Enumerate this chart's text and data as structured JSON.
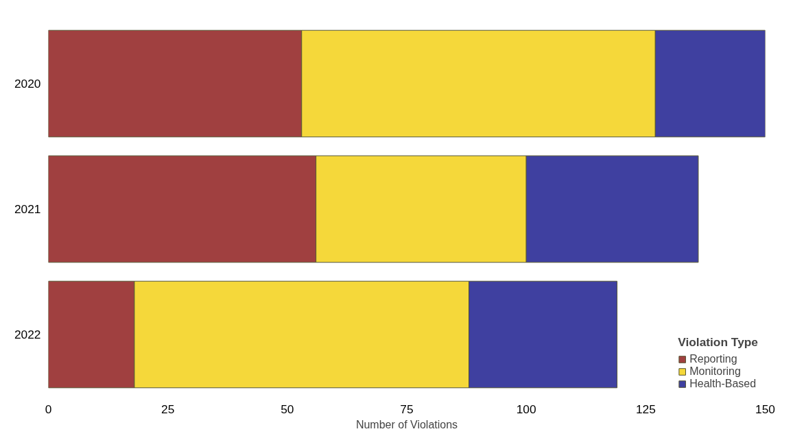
{
  "chart_data": {
    "type": "bar",
    "orientation": "horizontal",
    "stacked": true,
    "categories": [
      "2020",
      "2021",
      "2022"
    ],
    "series": [
      {
        "name": "Reporting",
        "color": "#a04040",
        "values": [
          53,
          56,
          18
        ]
      },
      {
        "name": "Monitoring",
        "color": "#f5d83a",
        "values": [
          74,
          44,
          70
        ]
      },
      {
        "name": "Health-Based",
        "color": "#3f40a0",
        "values": [
          23,
          36,
          31
        ]
      }
    ],
    "xlabel": "Number of Violations",
    "legend_title": "Violation Type",
    "legend": "bottom right",
    "xlim": [
      0,
      150
    ],
    "xticks": [
      0,
      25,
      50,
      75,
      100,
      125,
      150
    ],
    "grid": false
  }
}
